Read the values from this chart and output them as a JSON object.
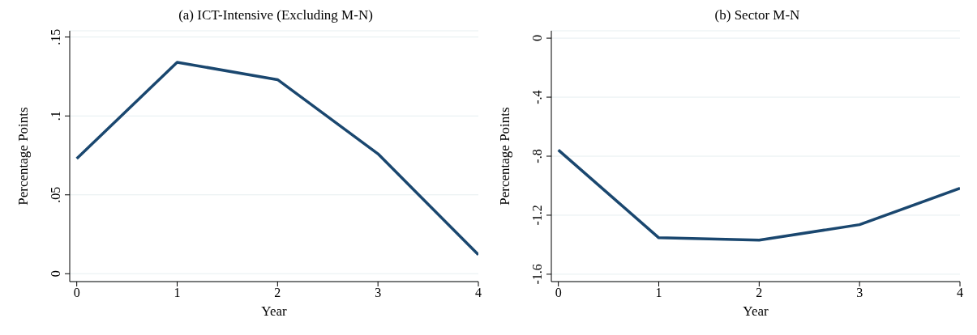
{
  "chart_data": [
    {
      "type": "line",
      "title": "(a) ICT-Intensive (Excluding M-N)",
      "xlabel": "Year",
      "ylabel": "Percentage Points",
      "x": [
        0,
        1,
        2,
        3,
        4
      ],
      "xlim": [
        -0.07,
        4
      ],
      "xticks": [
        0,
        1,
        2,
        3,
        4
      ],
      "ylim": [
        -0.005,
        0.154
      ],
      "yticks": [
        0,
        {
          "value": 0.05,
          "label": ".05"
        },
        {
          "value": 0.1,
          "label": ".1"
        },
        {
          "value": 0.15,
          "label": ".15"
        }
      ],
      "grid": "y",
      "marker": "none",
      "line_style": "solid",
      "series": [
        {
          "color": "#1a476f",
          "values": [
            0.073,
            0.134,
            0.123,
            0.076,
            0.012
          ]
        }
      ]
    },
    {
      "type": "line",
      "title": "(b) Sector M-N",
      "xlabel": "Year",
      "ylabel": "Percentage Points",
      "x": [
        0,
        1,
        2,
        3,
        4
      ],
      "xlim": [
        -0.07,
        4
      ],
      "xticks": [
        0,
        1,
        2,
        3,
        4
      ],
      "ylim": [
        -1.65,
        0.05
      ],
      "yticks": [
        {
          "value": -1.6,
          "label": "-1.6"
        },
        {
          "value": -1.2,
          "label": "-1.2"
        },
        {
          "value": -0.8,
          "label": "-.8"
        },
        {
          "value": -0.4,
          "label": "-.4"
        },
        0
      ],
      "grid": "y",
      "marker": "none",
      "line_style": "solid",
      "series": [
        {
          "color": "#1a476f",
          "values": [
            -0.758,
            -1.353,
            -1.369,
            -1.264,
            -1.018
          ]
        }
      ]
    }
  ]
}
